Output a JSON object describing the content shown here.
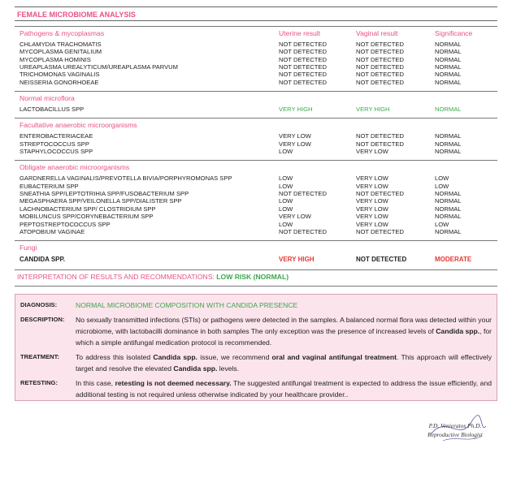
{
  "header": {
    "title": "FEMALE MICROBIOME ANALYSIS"
  },
  "table": {
    "columns": [
      "Uterine result",
      "Vaginal result",
      "Significance"
    ],
    "sections": [
      {
        "title": "Pathogens & mycoplasmas",
        "rows": [
          {
            "name": "CHLAMYDIA TRACHOMATIS",
            "uterine": "NOT DETECTED",
            "vaginal": "NOT DETECTED",
            "significance": "NORMAL"
          },
          {
            "name": "MYCOPLASMA GENITALIUM",
            "uterine": "NOT DETECTED",
            "vaginal": "NOT DETECTED",
            "significance": "NORMAL"
          },
          {
            "name": "MYCOPLASMA HOMINIS",
            "uterine": "NOT DETECTED",
            "vaginal": "NOT DETECTED",
            "significance": "NORMAL"
          },
          {
            "name": "UREAPLASMA UREALYTICUM/UREAPLASMA PARVUM",
            "uterine": "NOT DETECTED",
            "vaginal": "NOT DETECTED",
            "significance": "NORMAL"
          },
          {
            "name": "TRICHOMONAS VAGINALIS",
            "uterine": "NOT DETECTED",
            "vaginal": "NOT DETECTED",
            "significance": "NORMAL"
          },
          {
            "name": "NEISSERIA GONORHOEAE",
            "uterine": "NOT DETECTED",
            "vaginal": "NOT DETECTED",
            "significance": "NORMAL"
          }
        ]
      },
      {
        "title": "Normal microflora",
        "rows": [
          {
            "name": "LACTOBACILLUS SPP",
            "uterine": "VERY HIGH",
            "vaginal": "VERY HIGH",
            "significance": "NORMAL",
            "colors": {
              "uterine": "#3aa84a",
              "vaginal": "#3aa84a",
              "significance": "#3aa84a"
            }
          }
        ]
      },
      {
        "title": "Facultative anaerobic microorganisms",
        "rows": [
          {
            "name": "ENTEROBACTERIACEAE",
            "uterine": "VERY LOW",
            "vaginal": "NOT DETECTED",
            "significance": "NORMAL"
          },
          {
            "name": "STREPTOCOCCUS SPP",
            "uterine": "VERY LOW",
            "vaginal": "NOT DETECTED",
            "significance": "NORMAL"
          },
          {
            "name": "STAPHYLOCOCCUS SPP",
            "uterine": "LOW",
            "vaginal": "VERY LOW",
            "significance": "NORMAL"
          }
        ]
      },
      {
        "title": "Obligate anaerobic microorganisms",
        "rows": [
          {
            "name": "GARDNERELLA VAGINALIS/PREVOTELLA BIVIA/PORPHYROMONAS SPP",
            "uterine": "LOW",
            "vaginal": "VERY LOW",
            "significance": "LOW"
          },
          {
            "name": "EUBACTERIUM SPP",
            "uterine": "LOW",
            "vaginal": "VERY LOW",
            "significance": "LOW"
          },
          {
            "name": "SNEATHIA SPP/LEPTOTRIHIA SPP/FUSOBACTERIUM SPP",
            "uterine": "NOT DETECTED",
            "vaginal": "NOT DETECTED",
            "significance": "NORMAL"
          },
          {
            "name": "MEGASPHAERA SPP/VEILONELLA SPP/DIALISTER SPP",
            "uterine": "LOW",
            "vaginal": "VERY LOW",
            "significance": "NORMAL"
          },
          {
            "name": "LACHNOBACTERIUM SPP/ CLOSTRIDIUM SPP",
            "uterine": "LOW",
            "vaginal": "VERY LOW",
            "significance": "NORMAL"
          },
          {
            "name": "MOBILUNCUS SPP/CORYNEBACTERIUM SPP",
            "uterine": "VERY LOW",
            "vaginal": "VERY LOW",
            "significance": "NORMAL"
          },
          {
            "name": "PEPTOSTREPTOCOCCUS SPP",
            "uterine": "LOW",
            "vaginal": "VERY LOW",
            "significance": "LOW"
          },
          {
            "name": "ATOPOBIUM VAGINAE",
            "uterine": "NOT DETECTED",
            "vaginal": "NOT DETECTED",
            "significance": "NORMAL"
          }
        ]
      },
      {
        "title": "Fungi",
        "rows": [
          {
            "name": "CANDIDA SPP.",
            "uterine": "VERY  HIGH",
            "vaginal": "NOT DETECTED",
            "significance": "MODERATE",
            "bold": true,
            "colors": {
              "uterine": "#e53935",
              "significance": "#e53935"
            }
          }
        ]
      }
    ]
  },
  "interpretation": {
    "heading": "INTERPRETATION OF RESULTS AND RECOMMENDATIONS:",
    "risk": "LOW RISK (NORMAL)"
  },
  "box": {
    "items": [
      {
        "label": "DIAGNOSIS:",
        "color": "#3aa84a",
        "parts": [
          "NORMAL MICROBIOME COMPOSITION WITH CANDIDA PRESENCE"
        ]
      },
      {
        "label": "DESCRIPTION:",
        "parts": [
          "No sexually transmitted infections (STIs) or pathogens were detected in the samples. A balanced normal flora was detected within your microbiome, with lactobacilli dominance in both samples The only exception was the presence of increased levels of ",
          "Candida spp.",
          ", for which a simple antifungal medication protocol is recommended."
        ]
      },
      {
        "label": "TREATMENT:",
        "parts": [
          "To address this isolated ",
          "Candida spp.",
          " issue, we recommend ",
          "oral and vaginal antifungal treatment",
          ". This approach will effectively target and resolve the elevated ",
          "Candida spp.",
          " levels."
        ]
      },
      {
        "label": "RETESTING:",
        "parts": [
          "In this case, ",
          "retesting is not deemed necessary.",
          " The suggested antifungal treatment is expected to address the issue efficiently, and additional testing is not required unless otherwise indicated by your healthcare provider.."
        ]
      }
    ]
  },
  "signature": {
    "name": "P.D. Venieratos Ph.D.",
    "role": "Reproductive Biologist"
  }
}
